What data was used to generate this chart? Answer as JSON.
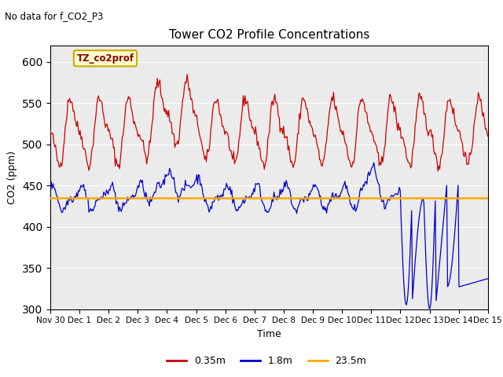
{
  "title": "Tower CO2 Profile Concentrations",
  "no_data_text": "No data for f_CO2_P3",
  "legend_box_label": "TZ_co2prof",
  "xlabel": "Time",
  "ylabel": "CO2 (ppm)",
  "ylim": [
    300,
    620
  ],
  "yticks": [
    300,
    350,
    400,
    450,
    500,
    550,
    600
  ],
  "bg_color": "#ebebeb",
  "line_red_color": "#cc0000",
  "line_blue_color": "#0000cc",
  "line_orange_color": "#ffaa00",
  "legend_labels": [
    "0.35m",
    "1.8m",
    "23.5m"
  ],
  "orange_flat_value": 435,
  "num_points": 500,
  "x_start_day": 0,
  "x_end_day": 15,
  "xtick_labels": [
    "Nov 30",
    "Dec 1",
    "Dec 2",
    "Dec 3",
    "Dec 4",
    "Dec 5",
    "Dec 6",
    "Dec 7",
    "Dec 8",
    "Dec 9",
    "Dec 10",
    "Dec 11",
    "Dec 12",
    "Dec 13",
    "Dec 14",
    "Dec 15"
  ],
  "xtick_positions": [
    0,
    1,
    2,
    3,
    4,
    5,
    6,
    7,
    8,
    9,
    10,
    11,
    12,
    13,
    14,
    15
  ]
}
